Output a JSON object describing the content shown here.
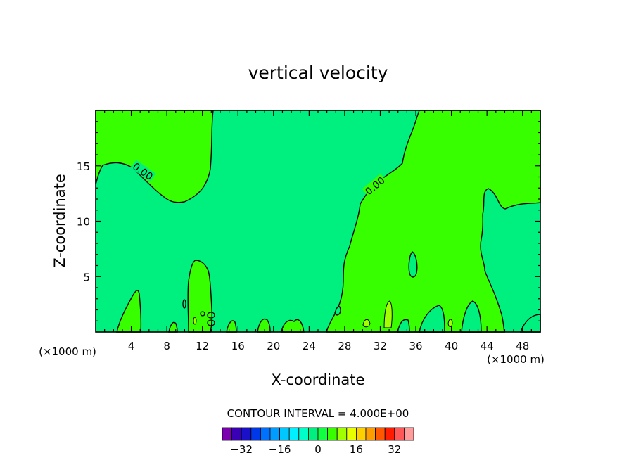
{
  "chart_data": {
    "type": "contour",
    "title": "vertical velocity",
    "xlabel": "X-coordinate",
    "ylabel": "Z-coordinate",
    "x_unit": "(×1000 m)",
    "x_unit_right": "(×1000 m)",
    "xlim": [
      0,
      50
    ],
    "ylim": [
      0,
      20
    ],
    "x_ticks": [
      {
        "value": 4,
        "label": "4"
      },
      {
        "value": 8,
        "label": "8"
      },
      {
        "value": 12,
        "label": "12"
      },
      {
        "value": 16,
        "label": "16"
      },
      {
        "value": 20,
        "label": "20"
      },
      {
        "value": 24,
        "label": "24"
      },
      {
        "value": 28,
        "label": "28"
      },
      {
        "value": 32,
        "label": "32"
      },
      {
        "value": 36,
        "label": "36"
      },
      {
        "value": 40,
        "label": "40"
      },
      {
        "value": 44,
        "label": "44"
      },
      {
        "value": 48,
        "label": "48"
      }
    ],
    "y_ticks": [
      {
        "value": 5,
        "label": "5"
      },
      {
        "value": 10,
        "label": "10"
      },
      {
        "value": 15,
        "label": "15"
      }
    ],
    "contour_labels": [
      {
        "text": "0.00",
        "x": 5.3,
        "z": 14.5
      },
      {
        "text": "0.00",
        "x": 31.4,
        "z": 13.2
      }
    ],
    "contour_interval_text": "CONTOUR INTERVAL = 4.000E+00",
    "colorbar": {
      "levels": [
        -36,
        -32,
        -28,
        -24,
        -20,
        -16,
        -12,
        -8,
        -4,
        0,
        4,
        8,
        12,
        16,
        20,
        24,
        28,
        32,
        36
      ],
      "colors": [
        "#7a00b0",
        "#3a00b4",
        "#1a10c8",
        "#0038e8",
        "#0070ff",
        "#009cff",
        "#00c8ff",
        "#00f0ff",
        "#00ffc8",
        "#00f080",
        "#10ff40",
        "#38ff00",
        "#a0ff00",
        "#e8ff00",
        "#ffd000",
        "#ff9c00",
        "#ff5800",
        "#ff1c00",
        "#ff5858",
        "#ff9c9c"
      ],
      "tick_labels": [
        {
          "value": -32,
          "label": "−32"
        },
        {
          "value": -16,
          "label": "−16"
        },
        {
          "value": 0,
          "label": "0"
        },
        {
          "value": 16,
          "label": "16"
        },
        {
          "value": 32,
          "label": "32"
        }
      ]
    },
    "colors": {
      "negative_fill": "#00f080",
      "positive_fill": "#38ff00",
      "small_positive_fill": "#a0ff00"
    }
  }
}
